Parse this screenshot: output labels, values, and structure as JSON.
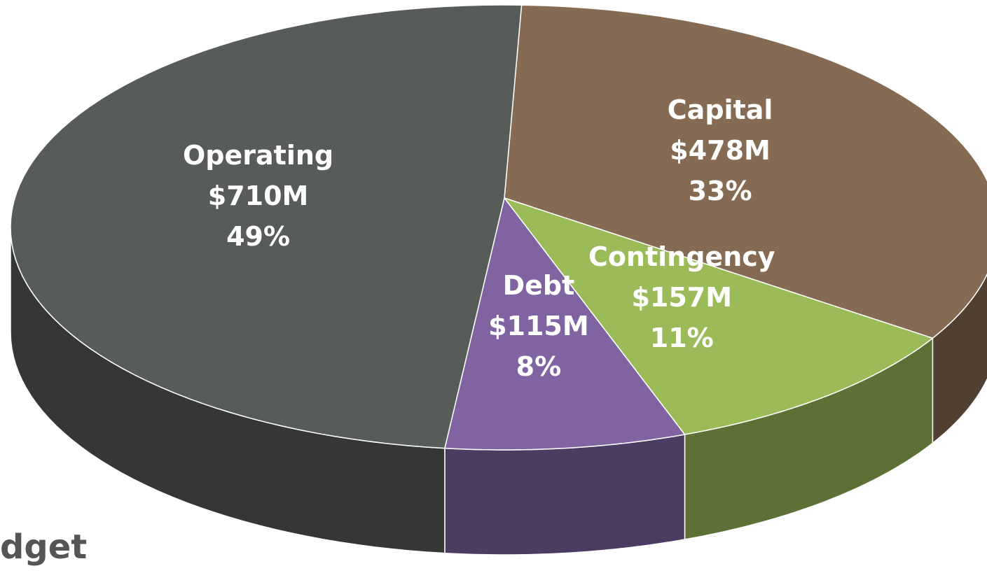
{
  "chart_data": {
    "type": "pie",
    "title": "dget",
    "categories": [
      "Capital",
      "Contingency",
      "Debt",
      "Operating"
    ],
    "values": [
      478,
      157,
      115,
      710
    ],
    "value_labels": [
      "$478M",
      "$157M",
      "$115M",
      "$710M"
    ],
    "percent_labels": [
      "33%",
      "11%",
      "8%",
      "49%"
    ],
    "colors": [
      "#856b53",
      "#9bbb59",
      "#8064a2",
      "#585c58"
    ]
  }
}
